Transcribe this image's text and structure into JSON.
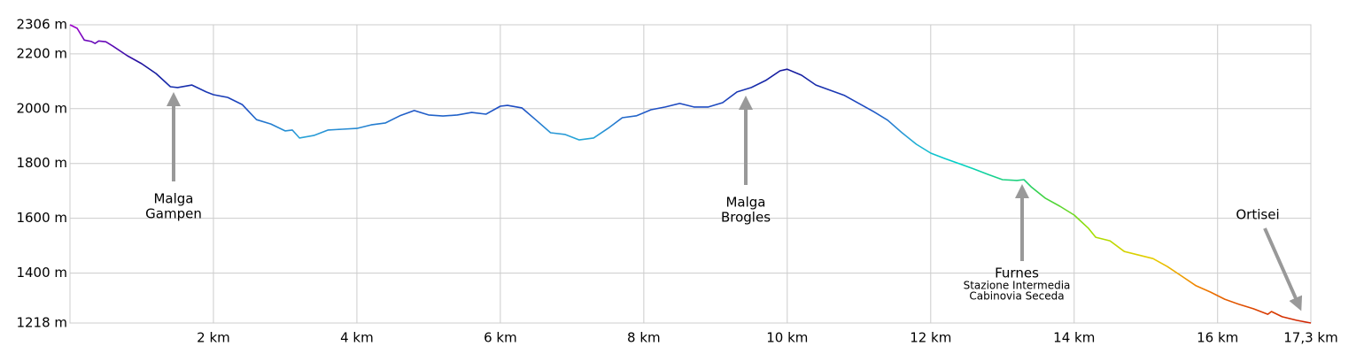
{
  "chart_data": {
    "type": "line",
    "x": [
      0,
      0.1,
      0.2,
      0.3,
      0.35,
      0.4,
      0.5,
      0.6,
      0.8,
      1.0,
      1.2,
      1.4,
      1.5,
      1.7,
      1.9,
      2.0,
      2.2,
      2.4,
      2.6,
      2.8,
      3.0,
      3.1,
      3.2,
      3.4,
      3.6,
      3.8,
      4.0,
      4.2,
      4.4,
      4.6,
      4.8,
      5.0,
      5.2,
      5.4,
      5.6,
      5.8,
      6.0,
      6.1,
      6.3,
      6.5,
      6.7,
      6.9,
      7.1,
      7.3,
      7.5,
      7.7,
      7.9,
      8.1,
      8.3,
      8.5,
      8.7,
      8.9,
      9.1,
      9.3,
      9.5,
      9.7,
      9.9,
      10.0,
      10.2,
      10.4,
      10.6,
      10.8,
      11.0,
      11.2,
      11.4,
      11.6,
      11.8,
      12.0,
      12.2,
      12.4,
      12.6,
      12.8,
      13.0,
      13.2,
      13.3,
      13.4,
      13.6,
      13.8,
      14.0,
      14.2,
      14.3,
      14.5,
      14.7,
      14.9,
      15.1,
      15.3,
      15.5,
      15.7,
      15.9,
      16.1,
      16.3,
      16.5,
      16.7,
      16.75,
      16.9,
      17.1,
      17.3
    ],
    "values": [
      2306,
      2293,
      2250,
      2245,
      2238,
      2247,
      2244,
      2228,
      2193,
      2164,
      2128,
      2080,
      2077,
      2086,
      2061,
      2051,
      2041,
      2015,
      1960,
      1944,
      1919,
      1922,
      1893,
      1902,
      1922,
      1925,
      1928,
      1941,
      1948,
      1974,
      1993,
      1977,
      1973,
      1977,
      1986,
      1980,
      2009,
      2012,
      2003,
      1958,
      1912,
      1906,
      1886,
      1893,
      1928,
      1967,
      1974,
      1996,
      2006,
      2019,
      2006,
      2006,
      2022,
      2061,
      2077,
      2103,
      2138,
      2144,
      2122,
      2086,
      2067,
      2048,
      2019,
      1990,
      1958,
      1912,
      1870,
      1838,
      1818,
      1799,
      1780,
      1760,
      1741,
      1738,
      1741,
      1715,
      1673,
      1644,
      1612,
      1563,
      1531,
      1518,
      1479,
      1466,
      1453,
      1424,
      1389,
      1354,
      1331,
      1305,
      1286,
      1270,
      1250,
      1260,
      1241,
      1228,
      1218
    ],
    "xlim": [
      0,
      17.3
    ],
    "ylim": [
      1218,
      2306
    ],
    "xticks": [
      {
        "value": 2,
        "label": "2 km"
      },
      {
        "value": 4,
        "label": "4 km"
      },
      {
        "value": 6,
        "label": "6 km"
      },
      {
        "value": 8,
        "label": "8 km"
      },
      {
        "value": 10,
        "label": "10 km"
      },
      {
        "value": 12,
        "label": "12 km"
      },
      {
        "value": 14,
        "label": "14 km"
      },
      {
        "value": 16,
        "label": "16 km"
      },
      {
        "value": 17.3,
        "label": "17,3 km"
      }
    ],
    "yticks": [
      {
        "value": 1218,
        "label": "1218 m"
      },
      {
        "value": 1400,
        "label": "1400 m"
      },
      {
        "value": 1600,
        "label": "1600 m"
      },
      {
        "value": 1800,
        "label": "1800 m"
      },
      {
        "value": 2000,
        "label": "2000 m"
      },
      {
        "value": 2200,
        "label": "2200 m"
      },
      {
        "value": 2306,
        "label": "2306 m"
      }
    ],
    "grid": true,
    "color_scale": [
      {
        "value": 2306,
        "color": "#a000cc"
      },
      {
        "value": 2150,
        "color": "#14149a"
      },
      {
        "value": 2000,
        "color": "#1e4fc4"
      },
      {
        "value": 1900,
        "color": "#2aa0d8"
      },
      {
        "value": 1800,
        "color": "#00d2c8"
      },
      {
        "value": 1700,
        "color": "#30d050"
      },
      {
        "value": 1550,
        "color": "#a0e000"
      },
      {
        "value": 1450,
        "color": "#e8cc00"
      },
      {
        "value": 1350,
        "color": "#f08000"
      },
      {
        "value": 1218,
        "color": "#d02000"
      }
    ],
    "annotations": [
      {
        "lines": [
          "Malga",
          "Gampen"
        ]
      },
      {
        "lines": [
          "Malga",
          "Brogles"
        ]
      },
      {
        "lines": [
          "Furnes"
        ],
        "subtext": [
          "Stazione Intermedia",
          "Cabinovia Seceda"
        ]
      },
      {
        "lines": [
          "Ortisei"
        ]
      }
    ]
  }
}
